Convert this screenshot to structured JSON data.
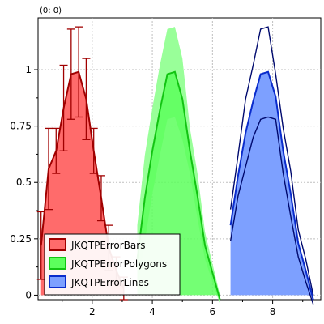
{
  "coordinate_readout": "(0; 0)",
  "chart_data": {
    "type": "area",
    "xlim": [
      0.2,
      9.6
    ],
    "ylim": [
      -0.02,
      1.23
    ],
    "grid": true,
    "x_ticks": [
      2,
      4,
      6,
      8
    ],
    "y_ticks": [
      0,
      0.25,
      0.5,
      0.75,
      1
    ],
    "y_tick_labels": [
      "0",
      "0.25",
      "0.5",
      "0.75",
      "1"
    ],
    "legend_position": "bottom-left",
    "series": [
      {
        "name": "JKQTPErrorBars",
        "error_style": "bars",
        "fill": "#ff6b6b",
        "line": "#a00000",
        "x": [
          0.3,
          0.55,
          0.8,
          1.05,
          1.3,
          1.55,
          1.8,
          2.05,
          2.3,
          2.55,
          2.8,
          3.05
        ],
        "y": [
          0.22,
          0.56,
          0.64,
          0.83,
          0.98,
          0.99,
          0.87,
          0.64,
          0.43,
          0.21,
          0.11,
          0.03
        ],
        "err": [
          0.15,
          0.18,
          0.1,
          0.19,
          0.2,
          0.2,
          0.18,
          0.1,
          0.1,
          0.1,
          0.06,
          0.05
        ]
      },
      {
        "name": "JKQTPErrorPolygons",
        "error_style": "polygons",
        "fill": "#5cff5c",
        "line": "#12c412",
        "err_fill": "#99ff99",
        "x": [
          3.5,
          3.75,
          4.0,
          4.25,
          4.5,
          4.75,
          5.0,
          5.25,
          5.5,
          5.75,
          6.0,
          6.25
        ],
        "y": [
          0.16,
          0.43,
          0.64,
          0.82,
          0.98,
          0.99,
          0.87,
          0.64,
          0.44,
          0.22,
          0.1,
          -0.02
        ],
        "err": [
          0.15,
          0.19,
          0.19,
          0.2,
          0.2,
          0.2,
          0.18,
          0.1,
          0.1,
          0.06,
          0.04,
          0.02
        ]
      },
      {
        "name": "JKQTPErrorLines",
        "error_style": "lines",
        "fill": "#7da0ff",
        "line": "#0a2ccc",
        "err_line": "#000a6e",
        "x": [
          6.6,
          6.85,
          7.1,
          7.35,
          7.6,
          7.85,
          8.1,
          8.35,
          8.6,
          8.85,
          9.1,
          9.35
        ],
        "y": [
          0.31,
          0.53,
          0.72,
          0.86,
          0.98,
          0.99,
          0.88,
          0.64,
          0.45,
          0.23,
          0.11,
          -0.02
        ],
        "err": [
          0.07,
          0.09,
          0.15,
          0.16,
          0.2,
          0.2,
          0.1,
          0.1,
          0.1,
          0.06,
          0.05,
          0.02
        ]
      }
    ]
  }
}
